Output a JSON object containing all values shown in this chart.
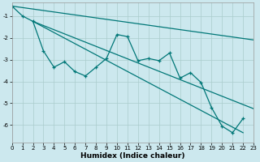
{
  "xlabel": "Humidex (Indice chaleur)",
  "background_color": "#cce8ee",
  "grid_color": "#aacccc",
  "line_color": "#007777",
  "xlim": [
    0,
    23
  ],
  "ylim": [
    -6.8,
    -0.4
  ],
  "x_ticks": [
    0,
    1,
    2,
    3,
    4,
    5,
    6,
    7,
    8,
    9,
    10,
    11,
    12,
    13,
    14,
    15,
    16,
    17,
    18,
    19,
    20,
    21,
    22,
    23
  ],
  "y_ticks": [
    -6,
    -5,
    -4,
    -3,
    -2,
    -1
  ],
  "series_zigzag": {
    "x": [
      0,
      1,
      2,
      3,
      4,
      5,
      6,
      7,
      8,
      9,
      10,
      11,
      12,
      13,
      14,
      15,
      16,
      17,
      18,
      19,
      20,
      21,
      22
    ],
    "y": [
      -0.55,
      -1.0,
      -1.25,
      -2.6,
      -3.35,
      -3.1,
      -3.55,
      -3.75,
      -3.35,
      -2.95,
      -1.85,
      -1.95,
      -3.05,
      -2.95,
      -3.05,
      -2.7,
      -3.85,
      -3.6,
      -4.05,
      -5.2,
      -6.05,
      -6.35,
      -5.7
    ]
  },
  "line1": {
    "x": [
      0,
      23
    ],
    "y": [
      -0.55,
      -2.1
    ]
  },
  "line2": {
    "x": [
      2,
      23
    ],
    "y": [
      -1.25,
      -5.25
    ]
  },
  "line3": {
    "x": [
      2,
      22
    ],
    "y": [
      -1.25,
      -6.35
    ]
  }
}
